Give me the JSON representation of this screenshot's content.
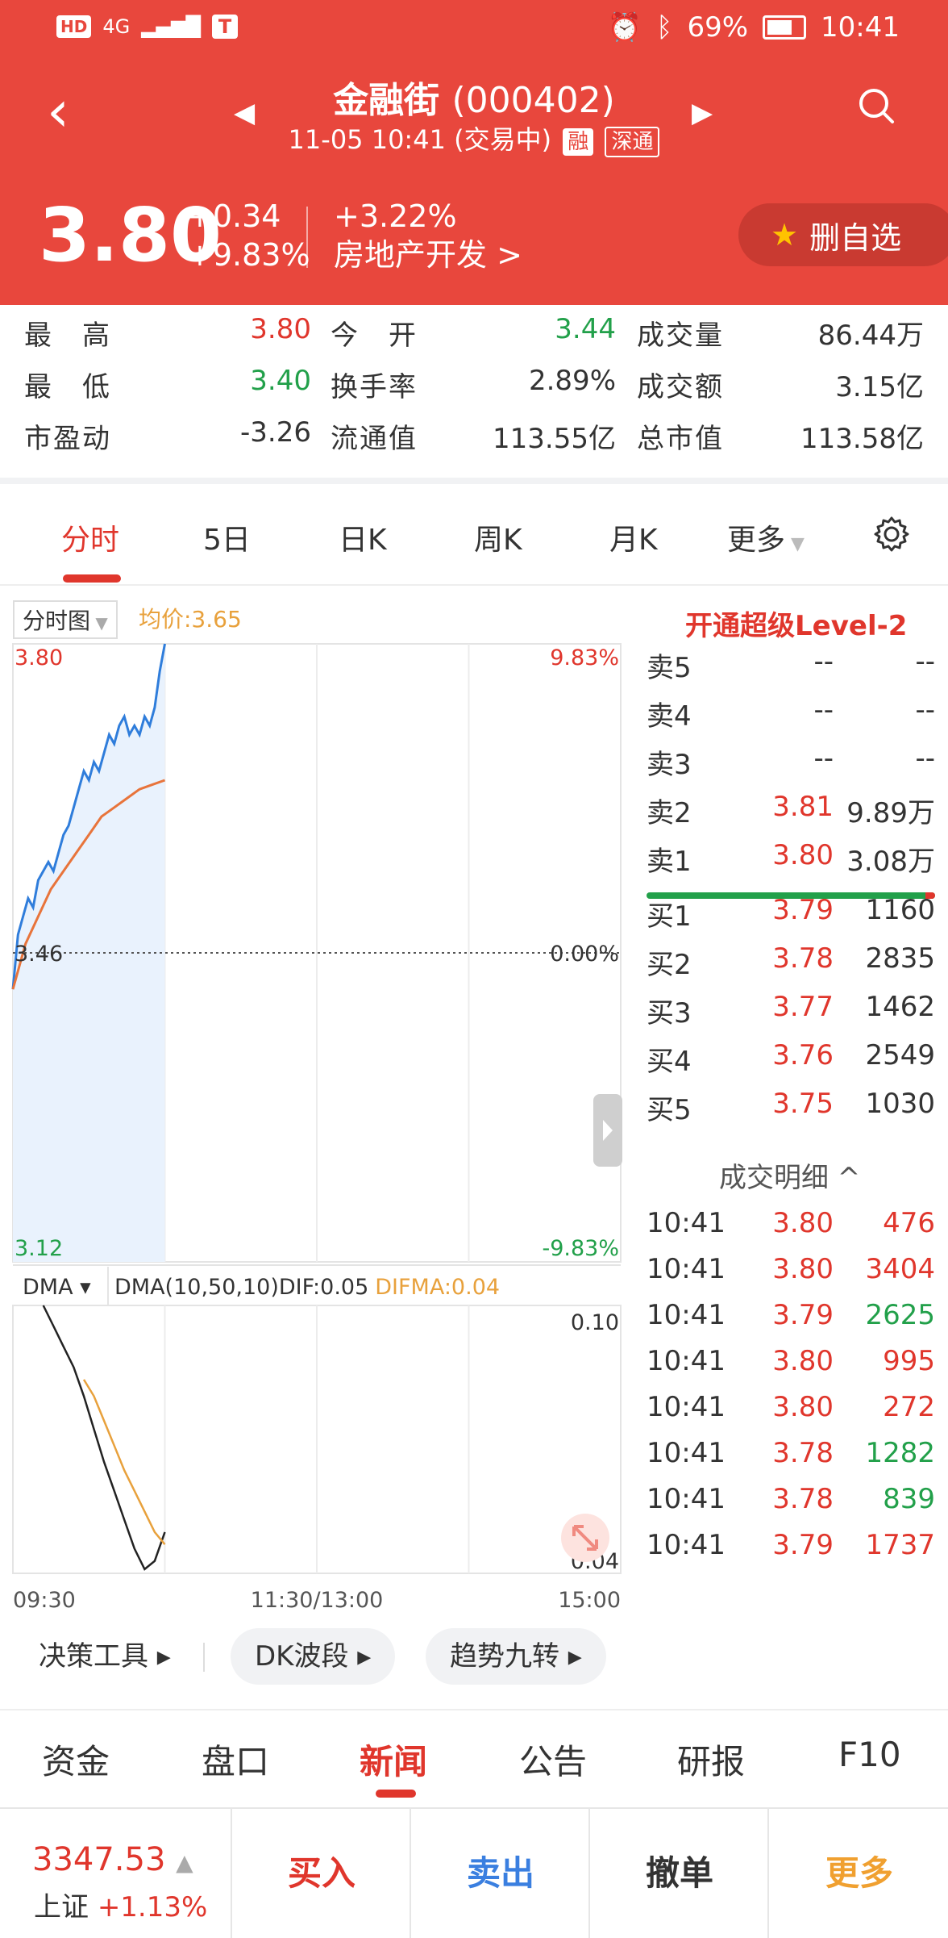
{
  "status": {
    "left": [
      "HD",
      "4G"
    ],
    "battery": "69%",
    "time": "10:41"
  },
  "header": {
    "name": "金融街",
    "code": "(000402)",
    "datetime": "11-05 10:41",
    "state": "(交易中)",
    "tag_margin": "融",
    "tag_connect": "深通"
  },
  "quote": {
    "price": "3.80",
    "change": "+0.34",
    "change_pct": "+9.83%",
    "sector_pct": "+3.22%",
    "sector": "房地产开发 >",
    "watch_btn": "删自选"
  },
  "stats": [
    [
      {
        "label": "最　高",
        "value": "3.80",
        "color": "red"
      },
      {
        "label": "今　开",
        "value": "3.44",
        "color": "green"
      },
      {
        "label": "成交量",
        "value": "86.44万",
        "color": ""
      }
    ],
    [
      {
        "label": "最　低",
        "value": "3.40",
        "color": "green"
      },
      {
        "label": "换手率",
        "value": "2.89%",
        "color": ""
      },
      {
        "label": "成交额",
        "value": "3.15亿",
        "color": ""
      }
    ],
    [
      {
        "label": "市盈动",
        "value": "-3.26",
        "color": ""
      },
      {
        "label": "流通值",
        "value": "113.55亿",
        "color": ""
      },
      {
        "label": "总市值",
        "value": "113.58亿",
        "color": ""
      }
    ]
  ],
  "chart_tabs": [
    "分时",
    "5日",
    "日K",
    "周K",
    "月K",
    "更多"
  ],
  "chart": {
    "mode": "分时图",
    "avg_label": "均价:3.65",
    "y_top": "3.80",
    "y_mid": "3.46",
    "y_bot": "3.12",
    "pct_top": "9.83%",
    "pct_mid": "0.00%",
    "pct_bot": "-9.83%",
    "x_labels": [
      "09:30",
      "11:30/13:00",
      "15:00"
    ],
    "dma_mode": "DMA",
    "dma_label": "DMA(10,50,10)DIF:0.05",
    "difma_label": "DIFMA:0.04",
    "dma_top": "0.10",
    "dma_bot": "0.04"
  },
  "chart_data": {
    "type": "line",
    "series": [
      {
        "x": [
          0,
          2,
          4,
          6,
          8,
          10,
          12,
          14,
          16,
          18,
          20,
          22,
          24,
          26,
          28,
          30,
          32,
          34,
          36,
          38,
          40,
          42,
          44,
          46,
          48,
          50,
          52,
          54,
          56,
          58,
          60
        ],
        "values": [
          3.42,
          3.48,
          3.5,
          3.52,
          3.51,
          3.54,
          3.55,
          3.56,
          3.55,
          3.57,
          3.59,
          3.6,
          3.62,
          3.64,
          3.66,
          3.65,
          3.67,
          3.66,
          3.68,
          3.7,
          3.69,
          3.71,
          3.72,
          3.7,
          3.71,
          3.7,
          3.72,
          3.71,
          3.73,
          3.77,
          3.8
        ]
      },
      {
        "x": [
          0,
          5,
          10,
          15,
          20,
          25,
          30,
          35,
          40,
          45,
          50,
          55,
          60
        ],
        "values": [
          3.42,
          3.47,
          3.5,
          3.53,
          3.55,
          3.57,
          3.59,
          3.61,
          3.62,
          3.63,
          3.64,
          3.645,
          3.65
        ]
      }
    ],
    "ylim": [
      3.12,
      3.8
    ],
    "dma": {
      "dif": [
        0.1,
        0.095,
        0.09,
        0.085,
        0.078,
        0.07,
        0.062,
        0.055,
        0.048,
        0.041,
        0.036,
        0.038,
        0.045
      ],
      "difma": [
        0.082,
        0.078,
        0.072,
        0.066,
        0.06,
        0.055,
        0.05,
        0.045,
        0.042
      ],
      "ylim": [
        0.035,
        0.1
      ]
    }
  },
  "level2": "开通超级Level-2",
  "book": [
    {
      "side": "卖5",
      "price": "--",
      "vol": "--"
    },
    {
      "side": "卖4",
      "price": "--",
      "vol": "--"
    },
    {
      "side": "卖3",
      "price": "--",
      "vol": "--"
    },
    {
      "side": "卖2",
      "price": "3.81",
      "vol": "9.89万"
    },
    {
      "side": "卖1",
      "price": "3.80",
      "vol": "3.08万"
    },
    {
      "side": "买1",
      "price": "3.79",
      "vol": "1160"
    },
    {
      "side": "买2",
      "price": "3.78",
      "vol": "2835"
    },
    {
      "side": "买3",
      "price": "3.77",
      "vol": "1462"
    },
    {
      "side": "买4",
      "price": "3.76",
      "vol": "2549"
    },
    {
      "side": "买5",
      "price": "3.75",
      "vol": "1030"
    }
  ],
  "detail_title": "成交明细 ^",
  "trades": [
    {
      "t": "10:41",
      "p": "3.80",
      "v": "476",
      "c": "red"
    },
    {
      "t": "10:41",
      "p": "3.80",
      "v": "3404",
      "c": "red"
    },
    {
      "t": "10:41",
      "p": "3.79",
      "v": "2625",
      "c": "green"
    },
    {
      "t": "10:41",
      "p": "3.80",
      "v": "995",
      "c": "red"
    },
    {
      "t": "10:41",
      "p": "3.80",
      "v": "272",
      "c": "red"
    },
    {
      "t": "10:41",
      "p": "3.78",
      "v": "1282",
      "c": "green"
    },
    {
      "t": "10:41",
      "p": "3.78",
      "v": "839",
      "c": "green"
    },
    {
      "t": "10:41",
      "p": "3.79",
      "v": "1737",
      "c": "red"
    }
  ],
  "tools": [
    "决策工具 ▸",
    "DK波段 ▸",
    "趋势九转 ▸"
  ],
  "news_tabs": [
    "资金",
    "盘口",
    "新闻",
    "公告",
    "研报",
    "F10"
  ],
  "index": {
    "value": "3347.53",
    "name": "上证",
    "pct": "+1.13%"
  },
  "trade_buttons": [
    {
      "label": "买入",
      "color": "#e0362c"
    },
    {
      "label": "卖出",
      "color": "#3a7fe0"
    },
    {
      "label": "撤单",
      "color": "#333"
    },
    {
      "label": "更多",
      "color": "#f0a030"
    }
  ]
}
